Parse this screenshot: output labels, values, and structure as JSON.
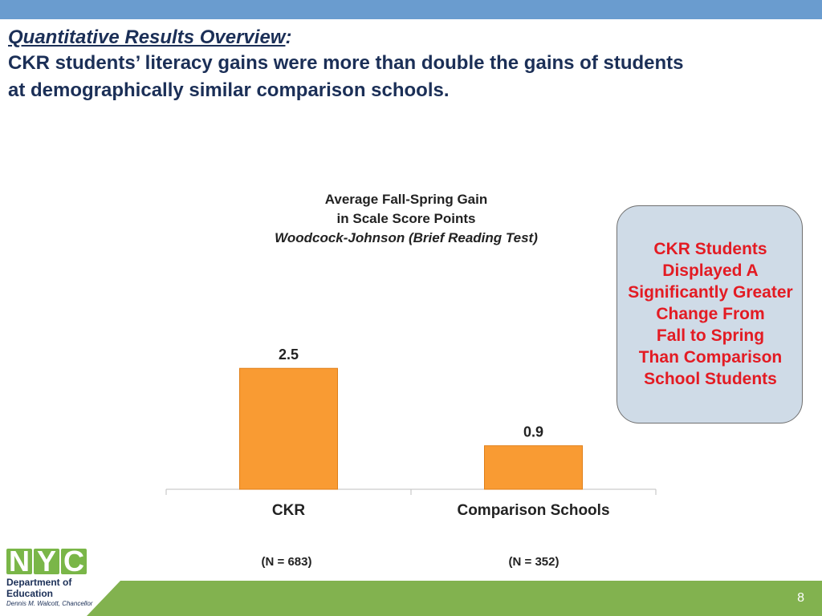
{
  "colors": {
    "top_bar": "#6a9ccf",
    "footer_green": "#82b24f",
    "bar": "#f99b33",
    "callout_text": "#e31b23",
    "logo_nyc": "#7ab648"
  },
  "header": {
    "subtitle": "Quantitative Results Overview",
    "colon": ":",
    "headline_1": "CKR students’ literacy gains were more than double the gains of students",
    "headline_2": "at demographically similar comparison schools."
  },
  "chart_title": {
    "line1": "Average Fall-Spring Gain",
    "line2": "in Scale Score Points",
    "line3": "Woodcock-Johnson (Brief Reading Test)"
  },
  "chart_data": {
    "type": "bar",
    "title": "Average Fall-Spring Gain in Scale Score Points Woodcock-Johnson (Brief Reading Test)",
    "categories": [
      "CKR",
      "Comparison Schools"
    ],
    "values": [
      2.5,
      0.9
    ],
    "data_labels": [
      "2.5",
      "0.9"
    ],
    "ylim": [
      0,
      3.25
    ],
    "xlabel": "",
    "ylabel": "",
    "grid": false
  },
  "sample_sizes": [
    "(N = 683)",
    "(N = 352)"
  ],
  "callout": {
    "text": "CKR Students\n Displayed A\nSignificantly Greater\n Change From\nFall to Spring\nThan Comparison\n School Students"
  },
  "logo": {
    "nyc_letters": [
      "N",
      "Y",
      "C"
    ],
    "department_line1": "Department of",
    "department_line2": "Education",
    "chancellor": "Dennis M. Walcott, Chancellor"
  },
  "footer": {
    "page_number": "8"
  }
}
